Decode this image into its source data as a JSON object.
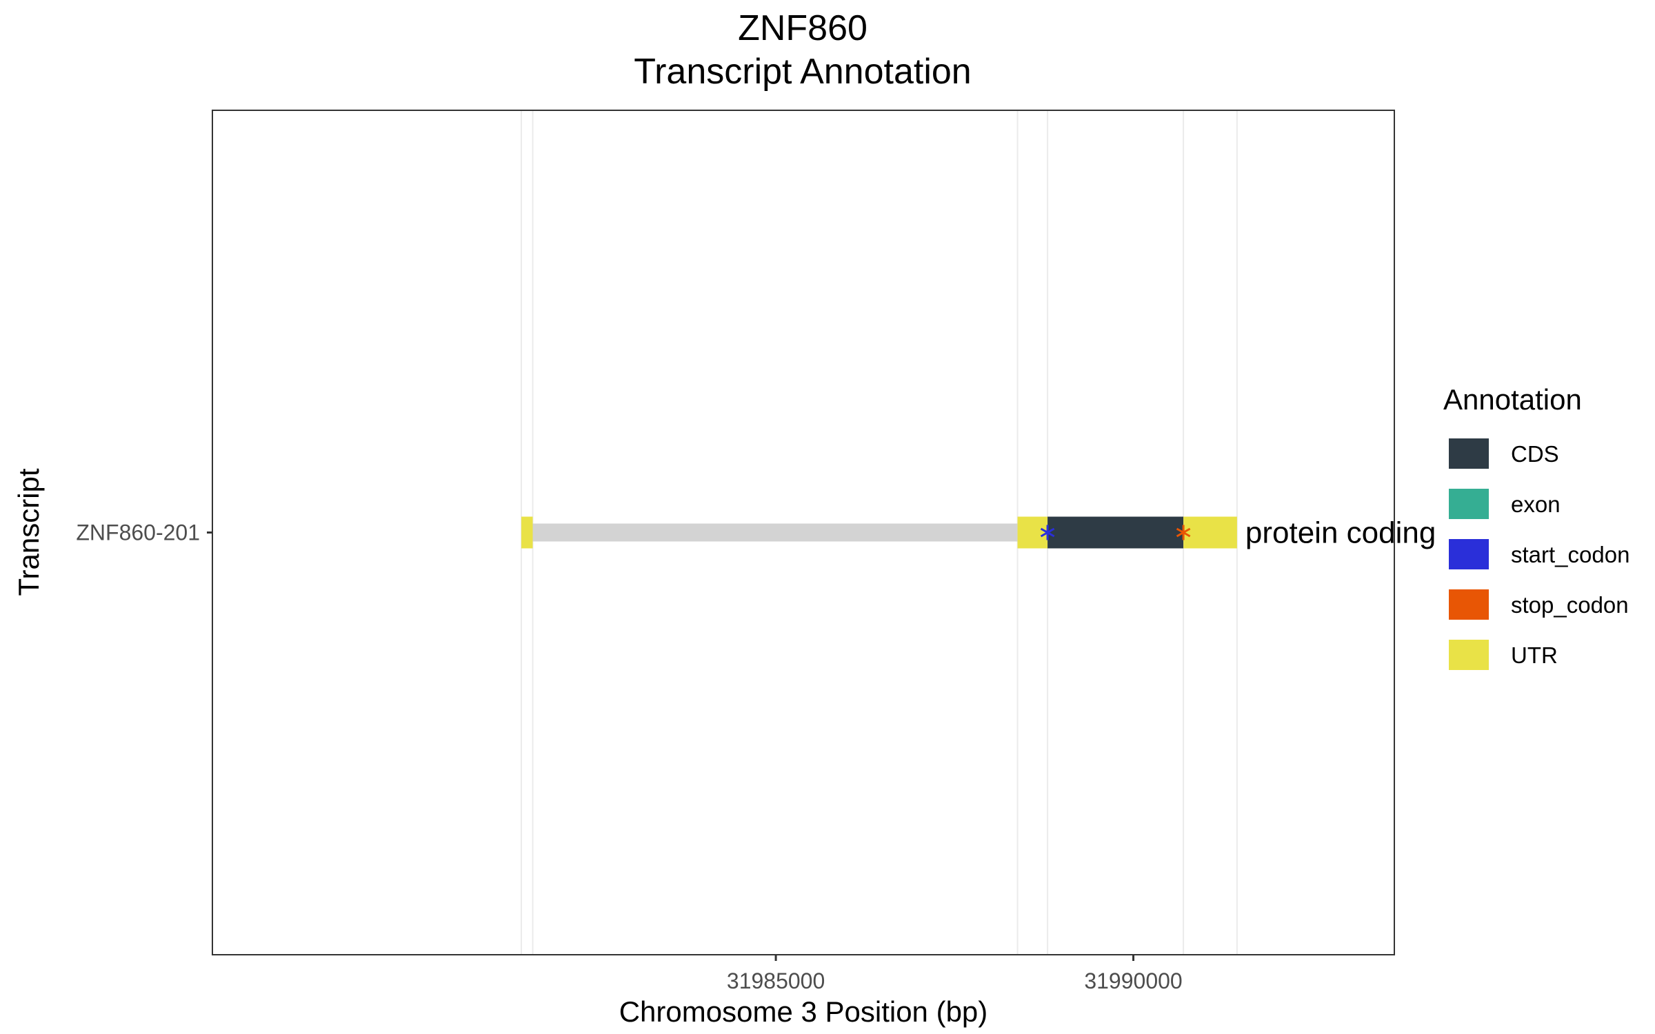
{
  "chart_data": {
    "type": "gene-track",
    "title": "ZNF860",
    "subtitle": "Transcript Annotation",
    "xlabel": "Chromosome 3 Position (bp)",
    "ylabel": "Transcript",
    "xlim": [
      31977120,
      31993650
    ],
    "x_ticks": [
      31985000,
      31990000
    ],
    "x_tick_labels": [
      "31985000",
      "31990000"
    ],
    "grid_x": [
      31981440,
      31981600,
      31988380,
      31988800,
      31990700,
      31991450
    ],
    "transcripts": [
      {
        "label": "ZNF860-201",
        "biotype": "protein coding",
        "intron": {
          "start": 31981600,
          "end": 31988380
        },
        "features": [
          {
            "type": "UTR",
            "start": 31981440,
            "end": 31981600
          },
          {
            "type": "UTR",
            "start": 31988380,
            "end": 31988800
          },
          {
            "type": "CDS",
            "start": 31988800,
            "end": 31990700
          },
          {
            "type": "UTR",
            "start": 31990700,
            "end": 31991450
          }
        ],
        "codons": [
          {
            "type": "start_codon",
            "position": 31988800
          },
          {
            "type": "stop_codon",
            "position": 31990700
          }
        ]
      }
    ],
    "legend": {
      "title": "Annotation",
      "position": "right",
      "entries": [
        {
          "label": "CDS",
          "color": "#2e3b45"
        },
        {
          "label": "exon",
          "color": "#35ae93"
        },
        {
          "label": "start_codon",
          "color": "#2a2fd9"
        },
        {
          "label": "stop_codon",
          "color": "#e85605"
        },
        {
          "label": "UTR",
          "color": "#e9e247"
        }
      ]
    },
    "intron_color": "#d3d3d3",
    "grid": true
  }
}
